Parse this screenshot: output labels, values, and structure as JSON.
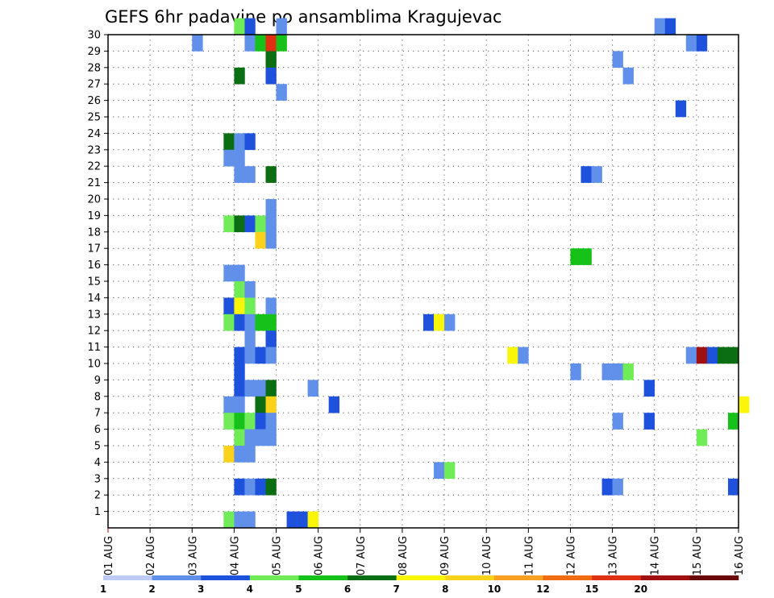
{
  "chart_data": {
    "type": "heatmap",
    "title": "GEFS 6hr padavine po ansamblima Kragujevac",
    "xlabel": "",
    "ylabel": "",
    "x_ticks": [
      "01 AUG",
      "02 AUG",
      "03 AUG",
      "04 AUG",
      "05 AUG",
      "06 AUG",
      "07 AUG",
      "08 AUG",
      "09 AUG",
      "10 AUG",
      "11 AUG",
      "12 AUG",
      "13 AUG",
      "14 AUG",
      "15 AUG",
      "16 AUG"
    ],
    "y_ticks": [
      "1",
      "2",
      "3",
      "4",
      "5",
      "6",
      "7",
      "8",
      "9",
      "10",
      "11",
      "12",
      "13",
      "14",
      "15",
      "16",
      "17",
      "18",
      "19",
      "20",
      "21",
      "22",
      "23",
      "24",
      "25",
      "26",
      "27",
      "28",
      "29",
      "30"
    ],
    "steps_per_day": 4,
    "grid": true,
    "colorbar": {
      "levels": [
        "1",
        "2",
        "3",
        "4",
        "5",
        "6",
        "7",
        "8",
        "10",
        "12",
        "15",
        "20"
      ],
      "colors": [
        "#bcccf5",
        "#6090ea",
        "#1e52dc",
        "#70ec58",
        "#16c21a",
        "#0c6e12",
        "#faf60a",
        "#fbd21a",
        "#f8a022",
        "#f06c12",
        "#e03014",
        "#a01010",
        "#6a0808"
      ]
    },
    "cells": [
      {
        "member": 30,
        "step": 12,
        "level": 3
      },
      {
        "member": 30,
        "step": 13,
        "level": 2
      },
      {
        "member": 30,
        "step": 16,
        "level": 1
      },
      {
        "member": 30,
        "step": 52,
        "level": 1
      },
      {
        "member": 30,
        "step": 53,
        "level": 2
      },
      {
        "member": 29,
        "step": 8,
        "level": 1
      },
      {
        "member": 29,
        "step": 13,
        "level": 1
      },
      {
        "member": 29,
        "step": 14,
        "level": 4
      },
      {
        "member": 29,
        "step": 15,
        "level": 10
      },
      {
        "member": 29,
        "step": 16,
        "level": 4
      },
      {
        "member": 29,
        "step": 55,
        "level": 1
      },
      {
        "member": 29,
        "step": 56,
        "level": 2
      },
      {
        "member": 28,
        "step": 15,
        "level": 5
      },
      {
        "member": 28,
        "step": 48,
        "level": 1
      },
      {
        "member": 27,
        "step": 12,
        "level": 5
      },
      {
        "member": 27,
        "step": 15,
        "level": 2
      },
      {
        "member": 27,
        "step": 49,
        "level": 1
      },
      {
        "member": 26,
        "step": 16,
        "level": 1
      },
      {
        "member": 25,
        "step": 54,
        "level": 2
      },
      {
        "member": 23,
        "step": 11,
        "level": 5
      },
      {
        "member": 23,
        "step": 12,
        "level": 1
      },
      {
        "member": 23,
        "step": 13,
        "level": 2
      },
      {
        "member": 22,
        "step": 11,
        "level": 1
      },
      {
        "member": 22,
        "step": 12,
        "level": 1
      },
      {
        "member": 21,
        "step": 12,
        "level": 1
      },
      {
        "member": 21,
        "step": 13,
        "level": 1
      },
      {
        "member": 21,
        "step": 15,
        "level": 5
      },
      {
        "member": 21,
        "step": 45,
        "level": 2
      },
      {
        "member": 21,
        "step": 46,
        "level": 1
      },
      {
        "member": 19,
        "step": 15,
        "level": 1
      },
      {
        "member": 18,
        "step": 11,
        "level": 3
      },
      {
        "member": 18,
        "step": 12,
        "level": 5
      },
      {
        "member": 18,
        "step": 13,
        "level": 2
      },
      {
        "member": 18,
        "step": 14,
        "level": 3
      },
      {
        "member": 18,
        "step": 15,
        "level": 1
      },
      {
        "member": 17,
        "step": 14,
        "level": 7
      },
      {
        "member": 17,
        "step": 15,
        "level": 1
      },
      {
        "member": 16,
        "step": 44,
        "level": 4
      },
      {
        "member": 16,
        "step": 45,
        "level": 4
      },
      {
        "member": 15,
        "step": 11,
        "level": 1
      },
      {
        "member": 15,
        "step": 12,
        "level": 1
      },
      {
        "member": 14,
        "step": 12,
        "level": 3
      },
      {
        "member": 14,
        "step": 13,
        "level": 1
      },
      {
        "member": 13,
        "step": 11,
        "level": 2
      },
      {
        "member": 13,
        "step": 12,
        "level": 6
      },
      {
        "member": 13,
        "step": 13,
        "level": 3
      },
      {
        "member": 13,
        "step": 15,
        "level": 1
      },
      {
        "member": 12,
        "step": 11,
        "level": 3
      },
      {
        "member": 12,
        "step": 12,
        "level": 2
      },
      {
        "member": 12,
        "step": 13,
        "level": 1
      },
      {
        "member": 12,
        "step": 14,
        "level": 4
      },
      {
        "member": 12,
        "step": 15,
        "level": 4
      },
      {
        "member": 12,
        "step": 30,
        "level": 2
      },
      {
        "member": 12,
        "step": 31,
        "level": 6
      },
      {
        "member": 12,
        "step": 32,
        "level": 1
      },
      {
        "member": 11,
        "step": 13,
        "level": 1
      },
      {
        "member": 11,
        "step": 15,
        "level": 2
      },
      {
        "member": 10,
        "step": 12,
        "level": 2
      },
      {
        "member": 10,
        "step": 13,
        "level": 1
      },
      {
        "member": 10,
        "step": 14,
        "level": 2
      },
      {
        "member": 10,
        "step": 15,
        "level": 1
      },
      {
        "member": 10,
        "step": 38,
        "level": 6
      },
      {
        "member": 10,
        "step": 39,
        "level": 1
      },
      {
        "member": 10,
        "step": 55,
        "level": 1
      },
      {
        "member": 10,
        "step": 56,
        "level": 11
      },
      {
        "member": 10,
        "step": 57,
        "level": 2
      },
      {
        "member": 10,
        "step": 58,
        "level": 5
      },
      {
        "member": 10,
        "step": 59,
        "level": 5
      },
      {
        "member": 9,
        "step": 12,
        "level": 2
      },
      {
        "member": 9,
        "step": 44,
        "level": 1
      },
      {
        "member": 9,
        "step": 47,
        "level": 1
      },
      {
        "member": 9,
        "step": 48,
        "level": 1
      },
      {
        "member": 9,
        "step": 49,
        "level": 3
      },
      {
        "member": 8,
        "step": 12,
        "level": 2
      },
      {
        "member": 8,
        "step": 13,
        "level": 1
      },
      {
        "member": 8,
        "step": 14,
        "level": 1
      },
      {
        "member": 8,
        "step": 15,
        "level": 5
      },
      {
        "member": 8,
        "step": 19,
        "level": 1
      },
      {
        "member": 8,
        "step": 51,
        "level": 2
      },
      {
        "member": 7,
        "step": 11,
        "level": 1
      },
      {
        "member": 7,
        "step": 12,
        "level": 1
      },
      {
        "member": 7,
        "step": 14,
        "level": 5
      },
      {
        "member": 7,
        "step": 15,
        "level": 7
      },
      {
        "member": 7,
        "step": 21,
        "level": 2
      },
      {
        "member": 7,
        "step": 60,
        "level": 6
      },
      {
        "member": 6,
        "step": 11,
        "level": 3
      },
      {
        "member": 6,
        "step": 12,
        "level": 4
      },
      {
        "member": 6,
        "step": 13,
        "level": 3
      },
      {
        "member": 6,
        "step": 14,
        "level": 2
      },
      {
        "member": 6,
        "step": 15,
        "level": 1
      },
      {
        "member": 6,
        "step": 48,
        "level": 1
      },
      {
        "member": 6,
        "step": 51,
        "level": 2
      },
      {
        "member": 6,
        "step": 59,
        "level": 4
      },
      {
        "member": 5,
        "step": 12,
        "level": 3
      },
      {
        "member": 5,
        "step": 13,
        "level": 1
      },
      {
        "member": 5,
        "step": 14,
        "level": 1
      },
      {
        "member": 5,
        "step": 15,
        "level": 1
      },
      {
        "member": 5,
        "step": 56,
        "level": 3
      },
      {
        "member": 4,
        "step": 11,
        "level": 7
      },
      {
        "member": 4,
        "step": 12,
        "level": 1
      },
      {
        "member": 4,
        "step": 13,
        "level": 1
      },
      {
        "member": 3,
        "step": 31,
        "level": 1
      },
      {
        "member": 3,
        "step": 32,
        "level": 3
      },
      {
        "member": 2,
        "step": 12,
        "level": 2
      },
      {
        "member": 2,
        "step": 13,
        "level": 1
      },
      {
        "member": 2,
        "step": 14,
        "level": 2
      },
      {
        "member": 2,
        "step": 15,
        "level": 5
      },
      {
        "member": 2,
        "step": 47,
        "level": 2
      },
      {
        "member": 2,
        "step": 48,
        "level": 1
      },
      {
        "member": 2,
        "step": 59,
        "level": 2
      },
      {
        "member": 0,
        "step": 11,
        "level": 3
      },
      {
        "member": 0,
        "step": 12,
        "level": 1
      },
      {
        "member": 0,
        "step": 13,
        "level": 1
      },
      {
        "member": 0,
        "step": 17,
        "level": 2
      },
      {
        "member": 0,
        "step": 18,
        "level": 2
      },
      {
        "member": 0,
        "step": 19,
        "level": 6
      }
    ]
  }
}
